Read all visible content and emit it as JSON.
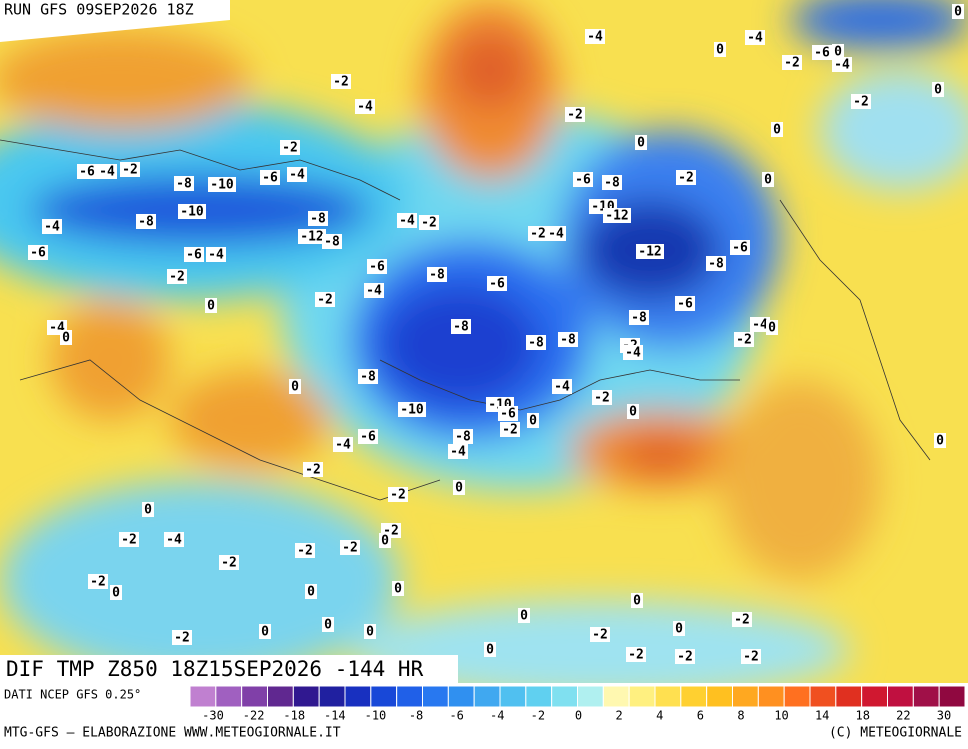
{
  "header": {
    "run": "RUN GFS 09SEP2026 18Z"
  },
  "map": {
    "field_label": "DIF TMP Z850 18Z15SEP2026 -144 HR",
    "contour_labels": [
      -4,
      0,
      -4,
      -6,
      0,
      -4,
      -2,
      -2,
      -4,
      -2,
      -2,
      -6,
      -4,
      -2,
      -8,
      -10,
      -6,
      -4,
      -6,
      -8,
      -2,
      0,
      -10,
      -8,
      -4,
      -8,
      -4,
      -2,
      -12,
      -8,
      -2,
      -4,
      -10,
      -12,
      -12,
      -6,
      -8,
      -6,
      -6,
      -4,
      -6,
      -8,
      -6,
      -2,
      -4,
      0,
      -2,
      -6,
      -8,
      -8,
      -4,
      0,
      -4,
      0,
      -8,
      -8,
      -2,
      -2,
      -4,
      0,
      -8,
      -4,
      -2,
      0,
      -10,
      -10,
      -6,
      0,
      -4,
      -6,
      -8,
      -2,
      -4,
      0,
      -2,
      0,
      -2,
      0,
      -2,
      -4,
      -2,
      0,
      -2,
      -2,
      -2,
      -2,
      0,
      0,
      0,
      0,
      0,
      0,
      -2,
      -2,
      0,
      -2,
      0,
      0,
      0,
      -2,
      -2,
      -2,
      0,
      -2,
      0,
      0,
      0,
      -4
    ]
  },
  "colorbar": {
    "source": "DATI NCEP GFS 0.25°",
    "colors": [
      "#c080d0",
      "#a060c0",
      "#8040a8",
      "#602890",
      "#301890",
      "#2020a0",
      "#1830c0",
      "#1848d8",
      "#2060e8",
      "#2878f0",
      "#3090f0",
      "#40a8f0",
      "#50c0f0",
      "#60d0f0",
      "#80e0f0",
      "#b0f0f0",
      "#fff8b0",
      "#fff080",
      "#ffe050",
      "#ffd030",
      "#ffc020",
      "#ffa820",
      "#ff9020",
      "#ff7020",
      "#f05020",
      "#e03020",
      "#d01830",
      "#c01040",
      "#a01048",
      "#900840"
    ],
    "ticks": [
      -30,
      -22,
      -18,
      -14,
      -10,
      -8,
      -6,
      -4,
      -2,
      0,
      2,
      4,
      6,
      8,
      10,
      14,
      18,
      22,
      30
    ]
  },
  "footer": {
    "left": "MTG-GFS — ELABORAZIONE WWW.METEOGIORNALE.IT",
    "right": "(C) METEOGIORNALE"
  }
}
